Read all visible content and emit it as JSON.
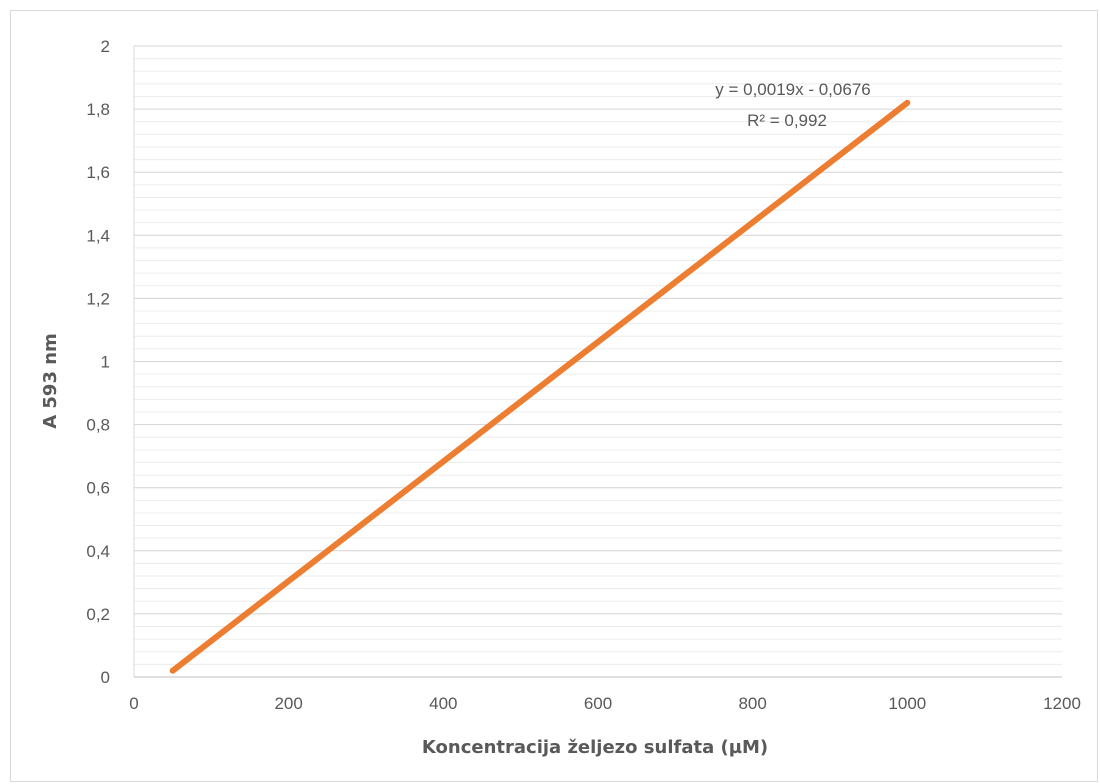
{
  "chart_data": {
    "type": "line",
    "title": "",
    "xlabel": "Koncentracija željezo sulfata (µM)",
    "ylabel": "A 593 nm",
    "xlim": [
      0,
      1200
    ],
    "ylim": [
      0,
      2
    ],
    "x_ticks": [
      0,
      200,
      400,
      600,
      800,
      1000,
      1200
    ],
    "x_tick_labels": [
      "0",
      "200",
      "400",
      "600",
      "800",
      "1000",
      "1200"
    ],
    "y_ticks": [
      0,
      0.2,
      0.4,
      0.6,
      0.8,
      1,
      1.2,
      1.4,
      1.6,
      1.8,
      2
    ],
    "y_tick_labels": [
      "0",
      "0,2",
      "0,4",
      "0,6",
      "0,8",
      "1",
      "1,2",
      "1,4",
      "1,6",
      "1,8",
      "2"
    ],
    "y_minor_step": 0.04,
    "grid": true,
    "legend": "none",
    "series": [
      {
        "x": [
          50,
          1000
        ],
        "y": [
          0.02,
          1.82
        ],
        "color": "#ed7d31"
      }
    ],
    "annotations": [
      "y = 0,0019x - 0,0676",
      "R² = 0,992"
    ]
  }
}
